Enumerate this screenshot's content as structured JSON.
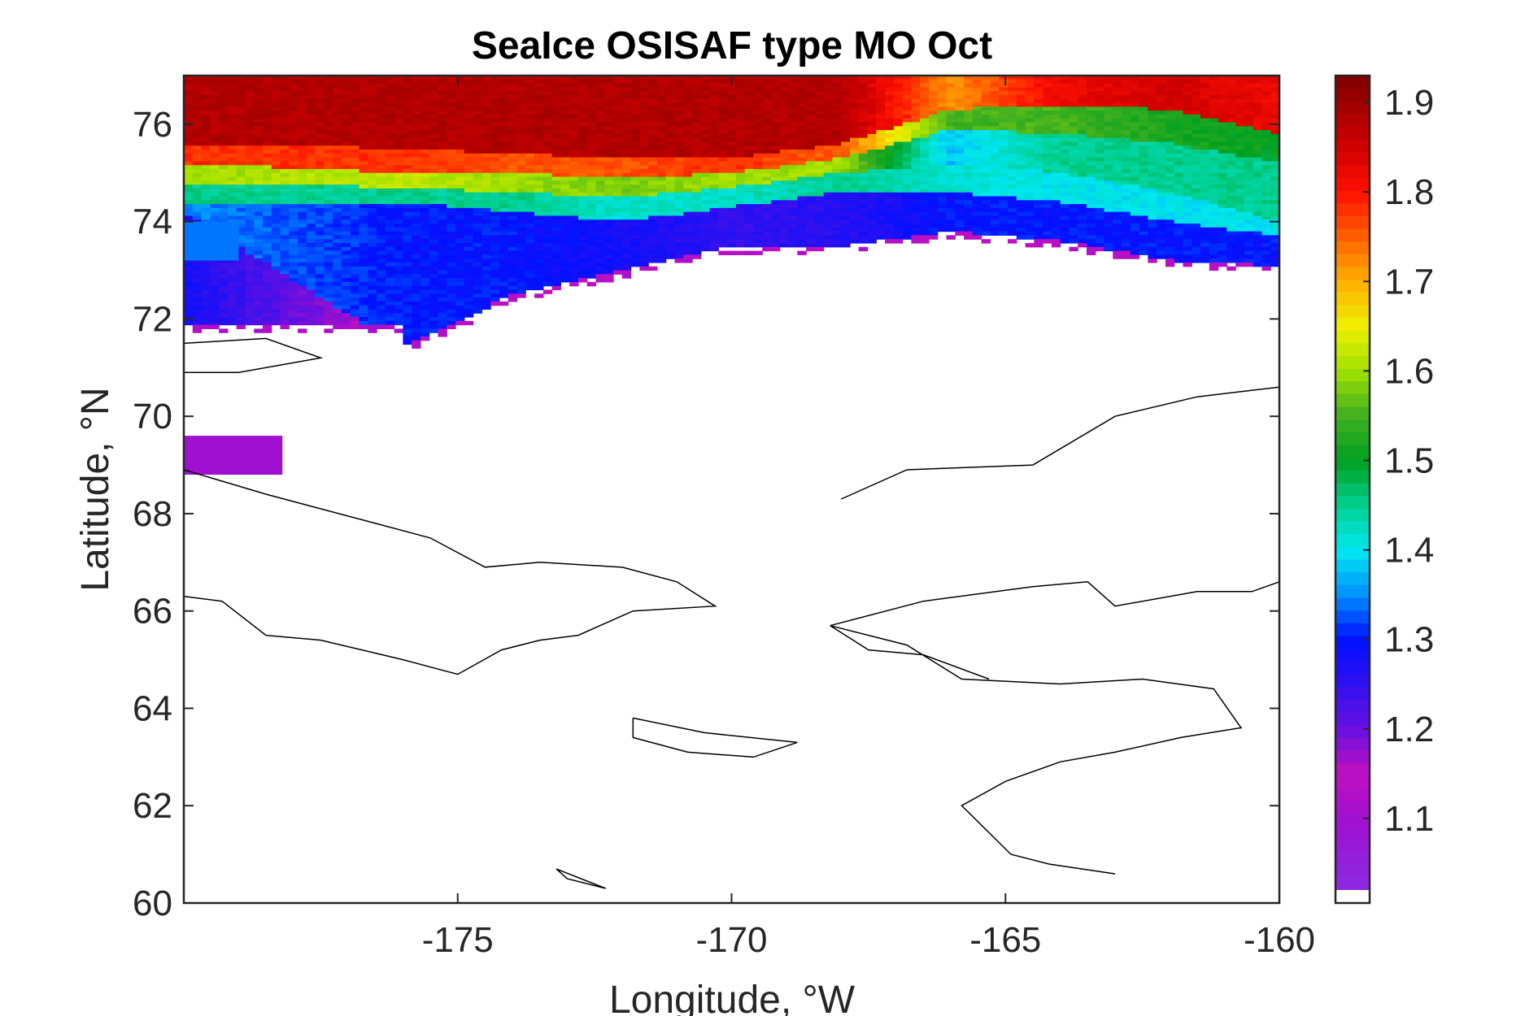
{
  "chart_data": {
    "type": "heatmap",
    "title": "SeaIce OSISAF type MO Oct",
    "xlabel": "Longitude, °W",
    "ylabel": "Latitude, °N",
    "xlim": [
      -180,
      -160
    ],
    "ylim": [
      60,
      77
    ],
    "xticks": [
      -175,
      -170,
      -165,
      -160
    ],
    "xtick_labels": [
      "-175",
      "-170",
      "-165",
      "-160"
    ],
    "yticks": [
      60,
      62,
      64,
      66,
      68,
      70,
      72,
      74,
      76
    ],
    "ytick_labels": [
      "60",
      "62",
      "64",
      "66",
      "68",
      "70",
      "72",
      "74",
      "76"
    ],
    "colorbar": {
      "range": [
        1.02,
        1.93
      ],
      "ticks": [
        1.1,
        1.2,
        1.3,
        1.4,
        1.5,
        1.6,
        1.7,
        1.8,
        1.9
      ],
      "tick_labels": [
        "1.1",
        "1.2",
        "1.3",
        "1.4",
        "1.5",
        "1.6",
        "1.7",
        "1.8",
        "1.9"
      ],
      "colormap": [
        {
          "v": 1.02,
          "c": "#8a2be2"
        },
        {
          "v": 1.1,
          "c": "#a010d0"
        },
        {
          "v": 1.15,
          "c": "#c010c0"
        },
        {
          "v": 1.2,
          "c": "#6a10e0"
        },
        {
          "v": 1.25,
          "c": "#3010f0"
        },
        {
          "v": 1.3,
          "c": "#0010ff"
        },
        {
          "v": 1.35,
          "c": "#0090ff"
        },
        {
          "v": 1.4,
          "c": "#00e8f0"
        },
        {
          "v": 1.45,
          "c": "#00d090"
        },
        {
          "v": 1.5,
          "c": "#00a020"
        },
        {
          "v": 1.55,
          "c": "#40b020"
        },
        {
          "v": 1.6,
          "c": "#a0e000"
        },
        {
          "v": 1.65,
          "c": "#f0f000"
        },
        {
          "v": 1.7,
          "c": "#ffb000"
        },
        {
          "v": 1.75,
          "c": "#ff6000"
        },
        {
          "v": 1.8,
          "c": "#ff1000"
        },
        {
          "v": 1.85,
          "c": "#d00000"
        },
        {
          "v": 1.93,
          "c": "#800000"
        }
      ]
    },
    "field_profile": [
      {
        "lon": -180,
        "bands": [
          [
            76.4,
            1.88
          ],
          [
            75.6,
            1.78
          ],
          [
            75.2,
            1.6
          ],
          [
            74.8,
            1.45
          ],
          [
            74.4,
            1.35
          ],
          [
            74.2,
            1.28
          ],
          [
            71.9,
            1.12
          ]
        ]
      },
      {
        "lon": -176,
        "bands": [
          [
            76.1,
            1.88
          ],
          [
            75.5,
            1.78
          ],
          [
            75.0,
            1.62
          ],
          [
            74.7,
            1.45
          ],
          [
            74.4,
            1.3
          ],
          [
            71.4,
            1.13
          ]
        ]
      },
      {
        "lon": -174,
        "bands": [
          [
            76.0,
            1.88
          ],
          [
            75.4,
            1.76
          ],
          [
            75.0,
            1.6
          ],
          [
            74.6,
            1.45
          ],
          [
            74.2,
            1.3
          ],
          [
            72.5,
            1.14
          ]
        ]
      },
      {
        "lon": -172,
        "bands": [
          [
            75.8,
            1.88
          ],
          [
            75.3,
            1.76
          ],
          [
            74.9,
            1.58
          ],
          [
            74.5,
            1.42
          ],
          [
            74.0,
            1.28
          ],
          [
            73.0,
            1.15
          ]
        ]
      },
      {
        "lon": -170,
        "bands": [
          [
            75.6,
            1.88
          ],
          [
            75.3,
            1.78
          ],
          [
            75.0,
            1.6
          ],
          [
            74.7,
            1.42
          ],
          [
            74.3,
            1.25
          ],
          [
            73.5,
            1.15
          ]
        ]
      },
      {
        "lon": -168,
        "bands": [
          [
            76.0,
            1.88
          ],
          [
            75.6,
            1.75
          ],
          [
            75.3,
            1.6
          ],
          [
            75.0,
            1.45
          ],
          [
            74.6,
            1.26
          ],
          [
            73.5,
            1.14
          ]
        ]
      },
      {
        "lon": -166,
        "bands": [
          [
            76.7,
            1.72
          ],
          [
            76.3,
            1.55
          ],
          [
            75.9,
            1.38
          ],
          [
            75.2,
            1.42
          ],
          [
            74.6,
            1.3
          ],
          [
            73.8,
            1.14
          ]
        ]
      },
      {
        "lon": -164,
        "bands": [
          [
            76.8,
            1.82
          ],
          [
            76.4,
            1.55
          ],
          [
            75.8,
            1.45
          ],
          [
            75.0,
            1.4
          ],
          [
            74.4,
            1.3
          ],
          [
            73.6,
            1.14
          ]
        ]
      },
      {
        "lon": -162,
        "bands": [
          [
            76.8,
            1.85
          ],
          [
            76.3,
            1.52
          ],
          [
            75.6,
            1.45
          ],
          [
            74.6,
            1.4
          ],
          [
            74.0,
            1.3
          ],
          [
            73.2,
            1.14
          ]
        ]
      },
      {
        "lon": -160,
        "bands": [
          [
            76.4,
            1.82
          ],
          [
            75.8,
            1.5
          ],
          [
            75.2,
            1.45
          ],
          [
            74.0,
            1.4
          ],
          [
            73.7,
            1.3
          ],
          [
            73.1,
            1.14
          ]
        ]
      }
    ],
    "isolated_patches": [
      {
        "lon_range": [
          -180,
          -178.2
        ],
        "lat_range": [
          68.8,
          69.6
        ],
        "value": 1.1
      },
      {
        "lon_range": [
          -180,
          -179.0
        ],
        "lat_range": [
          73.2,
          74.0
        ],
        "value": 1.34
      }
    ],
    "coastlines": [
      {
        "name": "Chukotka",
        "points": [
          [
            -180,
            68.9
          ],
          [
            -178.5,
            68.4
          ],
          [
            -177.5,
            68.1
          ],
          [
            -176.5,
            67.8
          ],
          [
            -175.5,
            67.5
          ],
          [
            -174.5,
            66.9
          ],
          [
            -173.5,
            67.0
          ],
          [
            -172,
            66.9
          ],
          [
            -171,
            66.6
          ],
          [
            -170.3,
            66.1
          ],
          [
            -171.8,
            66.0
          ],
          [
            -172.8,
            65.5
          ],
          [
            -173.5,
            65.4
          ],
          [
            -174.2,
            65.2
          ],
          [
            -175.0,
            64.7
          ],
          [
            -176.0,
            65.0
          ],
          [
            -177.5,
            65.4
          ],
          [
            -178.5,
            65.5
          ],
          [
            -179.3,
            66.2
          ],
          [
            -180,
            66.3
          ]
        ]
      },
      {
        "name": "Wrangel Island",
        "points": [
          [
            -180,
            71.5
          ],
          [
            -178.5,
            71.6
          ],
          [
            -177.5,
            71.2
          ],
          [
            -179,
            70.9
          ],
          [
            -180,
            70.9
          ]
        ]
      },
      {
        "name": "Alaska North Slope",
        "points": [
          [
            -168,
            68.3
          ],
          [
            -166.8,
            68.9
          ],
          [
            -164.5,
            69.0
          ],
          [
            -163.0,
            70.0
          ],
          [
            -161.5,
            70.4
          ],
          [
            -160,
            70.6
          ]
        ]
      },
      {
        "name": "Seward Peninsula",
        "points": [
          [
            -168.2,
            65.7
          ],
          [
            -166.5,
            66.2
          ],
          [
            -164.5,
            66.5
          ],
          [
            -163.5,
            66.6
          ],
          [
            -163.0,
            66.1
          ],
          [
            -161.5,
            66.4
          ],
          [
            -160.5,
            66.4
          ],
          [
            -160,
            66.6
          ]
        ]
      },
      {
        "name": "Norton Sound",
        "points": [
          [
            -165.3,
            64.6
          ],
          [
            -166.5,
            65.1
          ],
          [
            -167.5,
            65.2
          ],
          [
            -168.2,
            65.7
          ],
          [
            -166.8,
            65.3
          ],
          [
            -165.8,
            64.6
          ],
          [
            -164.0,
            64.5
          ],
          [
            -162.5,
            64.6
          ],
          [
            -161.2,
            64.4
          ],
          [
            -160.7,
            63.6
          ],
          [
            -161.8,
            63.4
          ],
          [
            -163.0,
            63.1
          ],
          [
            -164.0,
            62.9
          ],
          [
            -165.0,
            62.5
          ],
          [
            -165.8,
            62.0
          ],
          [
            -164.9,
            61.0
          ],
          [
            -164.2,
            60.8
          ],
          [
            -163.0,
            60.6
          ]
        ]
      },
      {
        "name": "St. Lawrence Island",
        "points": [
          [
            -171.8,
            63.8
          ],
          [
            -170.5,
            63.5
          ],
          [
            -168.8,
            63.3
          ],
          [
            -169.6,
            63.0
          ],
          [
            -170.8,
            63.1
          ],
          [
            -171.8,
            63.4
          ],
          [
            -171.8,
            63.8
          ]
        ]
      },
      {
        "name": "St. Matthew Island",
        "points": [
          [
            -173.2,
            60.7
          ],
          [
            -172.3,
            60.3
          ],
          [
            -173.0,
            60.5
          ],
          [
            -173.2,
            60.7
          ]
        ]
      }
    ]
  }
}
